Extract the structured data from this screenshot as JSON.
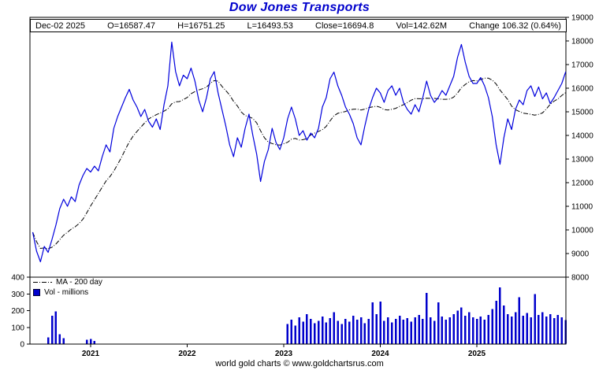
{
  "title": "Dow Jones Transports",
  "quote_bar": {
    "date": "Dec-02 2025",
    "open": "O=16587.47",
    "high": "H=16751.25",
    "low": "L=16493.53",
    "close": "Close=16694.8",
    "volume": "Vol=142.62M",
    "change": "Change 106.32 (0.64%)"
  },
  "legend": {
    "ma": "MA - 200 day",
    "vol": "Vol - millions"
  },
  "footer": "world gold charts © www.goldchartsrus.com",
  "colors": {
    "accent_blue": "#0000cc",
    "price_line": "#0000dd",
    "volume_bar": "#0000cc",
    "ma_line": "#000000",
    "axis": "#000000"
  },
  "chart_data": {
    "type": "line",
    "title": "Dow Jones Transports",
    "x_start": 2020.4,
    "x_step": 0.04,
    "x_ticks": [
      2021,
      2022,
      2023,
      2024,
      2025
    ],
    "price_axis": {
      "side": "right",
      "min": 8000,
      "max": 19000,
      "tick_step": 1000
    },
    "volume_axis": {
      "side": "left",
      "min": 0,
      "max": 400,
      "tick_step": 100
    },
    "latest": {
      "date": "Dec-02 2025",
      "open": 16587.47,
      "high": 16751.25,
      "low": 16493.53,
      "close": 16694.8,
      "volume_millions": 142.62,
      "change": 106.32,
      "change_pct": 0.64
    },
    "series": [
      {
        "name": "DJT daily close",
        "values": [
          9900,
          9100,
          8650,
          9300,
          9050,
          9600,
          10200,
          10900,
          11300,
          11000,
          11400,
          11200,
          11900,
          12300,
          12600,
          12450,
          12700,
          12500,
          13100,
          13600,
          13300,
          14300,
          14800,
          15200,
          15600,
          15950,
          15500,
          15200,
          14800,
          15100,
          14600,
          14350,
          14700,
          14250,
          15300,
          16100,
          17950,
          16700,
          16100,
          16550,
          16400,
          16850,
          16300,
          15500,
          15000,
          15600,
          16400,
          16700,
          15800,
          15100,
          14400,
          13600,
          13100,
          13900,
          13500,
          14300,
          14900,
          14000,
          13200,
          12050,
          12900,
          13400,
          14300,
          13700,
          13400,
          13900,
          14700,
          15200,
          14700,
          14000,
          14200,
          13800,
          14100,
          13900,
          14300,
          15200,
          15600,
          16400,
          16680,
          16100,
          15700,
          15200,
          14900,
          14500,
          13900,
          13600,
          14400,
          15100,
          15600,
          16000,
          15800,
          15400,
          15900,
          16100,
          15700,
          16000,
          15400,
          15100,
          14900,
          15300,
          15000,
          15600,
          16300,
          15700,
          15400,
          15600,
          15900,
          15700,
          16100,
          16500,
          17300,
          17850,
          17100,
          16500,
          16200,
          16200,
          16450,
          16100,
          15600,
          14800,
          13600,
          12780,
          13900,
          14700,
          14250,
          15100,
          15500,
          15300,
          15900,
          16100,
          15650,
          16050,
          15550,
          15800,
          15350,
          15600,
          15900,
          16200,
          16694.8
        ]
      },
      {
        "name": "MA - 200 day",
        "derived_from": "DJT daily close",
        "window_points": 13
      },
      {
        "name": "Volume (millions)",
        "values": [
          0,
          0,
          0,
          0,
          40,
          170,
          195,
          60,
          35,
          0,
          0,
          0,
          0,
          0,
          25,
          30,
          20,
          0,
          0,
          0,
          0,
          0,
          0,
          0,
          0,
          0,
          0,
          0,
          0,
          0,
          0,
          0,
          0,
          0,
          0,
          0,
          0,
          0,
          0,
          0,
          0,
          0,
          0,
          0,
          0,
          0,
          0,
          0,
          0,
          0,
          0,
          0,
          0,
          0,
          0,
          0,
          0,
          0,
          0,
          0,
          0,
          0,
          0,
          0,
          0,
          0,
          120,
          145,
          110,
          160,
          135,
          180,
          150,
          125,
          140,
          165,
          130,
          155,
          190,
          140,
          120,
          150,
          135,
          170,
          145,
          160,
          125,
          150,
          250,
          180,
          255,
          140,
          160,
          130,
          150,
          170,
          145,
          155,
          135,
          160,
          175,
          150,
          305,
          160,
          140,
          250,
          165,
          145,
          160,
          180,
          200,
          220,
          170,
          190,
          160,
          150,
          165,
          145,
          175,
          210,
          260,
          340,
          230,
          180,
          165,
          190,
          280,
          170,
          185,
          160,
          300,
          175,
          190,
          165,
          180,
          155,
          175,
          160,
          142.62
        ]
      }
    ]
  }
}
